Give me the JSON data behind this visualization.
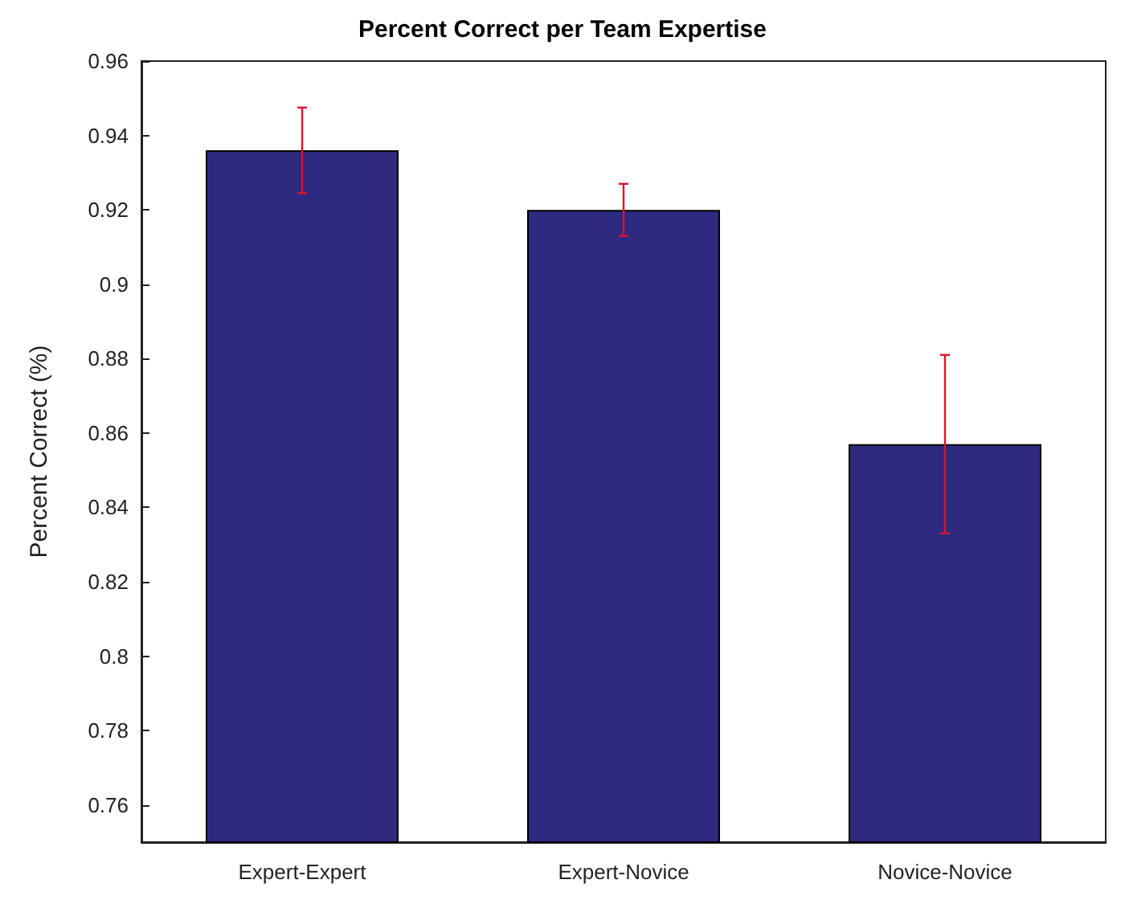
{
  "chart_data": {
    "type": "bar",
    "title": "Percent Correct per Team Expertise",
    "ylabel": "Percent Correct (%)",
    "categories": [
      "Expert-Expert",
      "Expert-Novice",
      "Novice-Novice"
    ],
    "values": [
      0.936,
      0.92,
      0.857
    ],
    "color": "#2e2a80",
    "errors": [
      0.0115,
      0.007,
      0.024
    ],
    "ylim": [
      0.75,
      0.96
    ],
    "yticks": [
      0.76,
      0.78,
      0.8,
      0.82,
      0.84,
      0.86,
      0.88,
      0.9,
      0.92,
      0.94,
      0.96
    ],
    "grid": false
  }
}
